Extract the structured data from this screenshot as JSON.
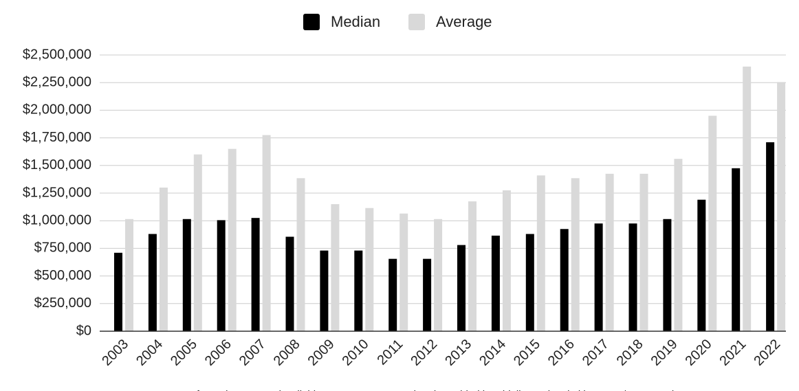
{
  "chart_data": {
    "type": "bar",
    "categories": [
      "2003",
      "2004",
      "2005",
      "2006",
      "2007",
      "2008",
      "2009",
      "2010",
      "2011",
      "2012",
      "2013",
      "2014",
      "2015",
      "2016",
      "2017",
      "2018",
      "2019",
      "2020",
      "2021",
      "2022"
    ],
    "series": [
      {
        "name": "Median",
        "color": "#000000",
        "values": [
          710000,
          880000,
          1015000,
          1005000,
          1025000,
          855000,
          730000,
          730000,
          655000,
          655000,
          780000,
          865000,
          880000,
          925000,
          975000,
          975000,
          1015000,
          1190000,
          1475000,
          1710000
        ]
      },
      {
        "name": "Average",
        "color": "#d9d9d9",
        "values": [
          1015000,
          1300000,
          1600000,
          1650000,
          1775000,
          1385000,
          1150000,
          1115000,
          1065000,
          1015000,
          1175000,
          1275000,
          1410000,
          1385000,
          1425000,
          1425000,
          1560000,
          1950000,
          2395000,
          2255000
        ]
      }
    ],
    "ylim": [
      0,
      2500000
    ],
    "yticks": [
      {
        "value": 0,
        "label": "$0"
      },
      {
        "value": 250000,
        "label": "$250,000"
      },
      {
        "value": 500000,
        "label": "$500,000"
      },
      {
        "value": 750000,
        "label": "$750,000"
      },
      {
        "value": 1000000,
        "label": "$1,000,000"
      },
      {
        "value": 1250000,
        "label": "$1,250,000"
      },
      {
        "value": 1500000,
        "label": "$1,500,000"
      },
      {
        "value": 1750000,
        "label": "$1,750,000"
      },
      {
        "value": 2000000,
        "label": "$2,000,000"
      },
      {
        "value": 2250000,
        "label": "$2,250,000"
      },
      {
        "value": 2500000,
        "label": "$2,500,000"
      }
    ],
    "grid": true,
    "legend": "top",
    "source": "Information Deemed Reliable But Not Guaranteed and Provided by Fidelity National Title Group/Santa Barbara"
  }
}
